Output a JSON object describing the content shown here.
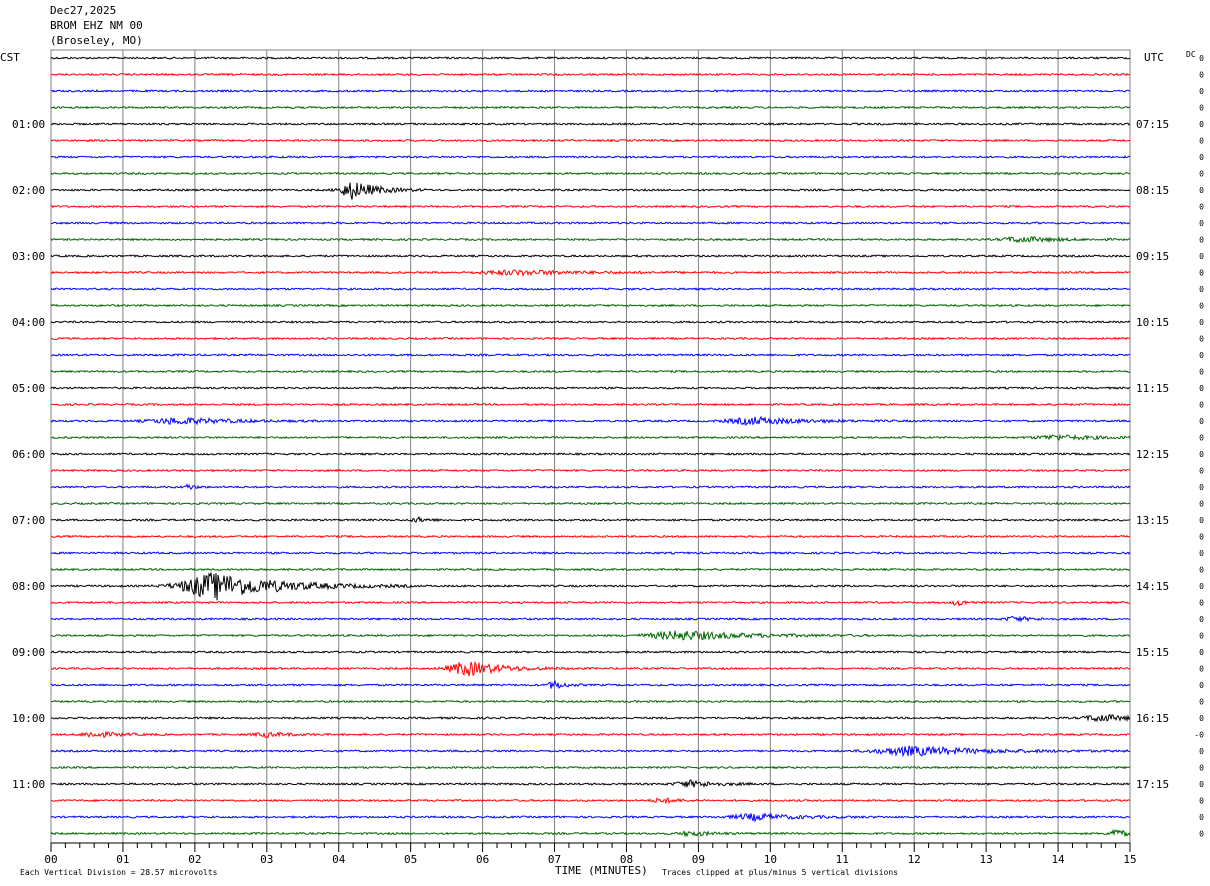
{
  "header": {
    "date": "Dec27,2025",
    "station": "BROM EHZ NM 00",
    "location": "(Broseley, MO)"
  },
  "colors": {
    "trace_cycle": [
      "#000000",
      "#ff0000",
      "#0000ff",
      "#006400"
    ],
    "grid": "#808080",
    "axis": "#000000"
  },
  "chart_data": {
    "type": "line",
    "left_timezone": "CST",
    "right_timezone": "UTC",
    "dc_label": "DC",
    "xlabel": "TIME (MINUTES)",
    "xlim": [
      0,
      15
    ],
    "x_tick_labels": [
      "00",
      "01",
      "02",
      "03",
      "04",
      "05",
      "06",
      "07",
      "08",
      "09",
      "10",
      "11",
      "12",
      "13",
      "14",
      "15"
    ],
    "row_interval_minutes": 15,
    "row_count": 48,
    "left_hour_labels": [
      "01:00",
      "02:00",
      "03:00",
      "04:00",
      "05:00",
      "06:00",
      "07:00",
      "08:00",
      "09:00",
      "10:00",
      "11:00"
    ],
    "right_hour_labels": [
      "07:15",
      "08:15",
      "09:15",
      "10:15",
      "11:15",
      "12:15",
      "13:15",
      "14:15",
      "15:15",
      "16:15",
      "17:15"
    ],
    "dc_offsets": [
      "0",
      "0",
      "0",
      "0",
      "0",
      "0",
      "0",
      "0",
      "0",
      "0",
      "0",
      "0",
      "0",
      "0",
      "0",
      "0",
      "0",
      "0",
      "0",
      "0",
      "0",
      "0",
      "0",
      "0",
      "0",
      "0",
      "0",
      "0",
      "0",
      "0",
      "0",
      "0",
      "0",
      "0",
      "0",
      "0",
      "0",
      "0",
      "0",
      "0",
      "0",
      "-0",
      "0",
      "0",
      "0",
      "0",
      "0",
      "0"
    ],
    "footer_left": "Each Vertical Division =   28.57 microvolts",
    "footer_right": "Traces clipped at plus/minus 5 vertical divisions",
    "events": [
      {
        "row": 8,
        "minute": 4.2,
        "amp": 1.0,
        "dur": 0.7
      },
      {
        "row": 11,
        "minute": 13.5,
        "amp": 0.3,
        "dur": 1.0
      },
      {
        "row": 13,
        "minute": 6.5,
        "amp": 0.25,
        "dur": 2.0
      },
      {
        "row": 22,
        "minute": 1.8,
        "amp": 0.35,
        "dur": 1.5
      },
      {
        "row": 22,
        "minute": 9.8,
        "amp": 0.4,
        "dur": 1.4
      },
      {
        "row": 23,
        "minute": 14.0,
        "amp": 0.25,
        "dur": 1.2
      },
      {
        "row": 26,
        "minute": 1.9,
        "amp": 0.3,
        "dur": 0.2
      },
      {
        "row": 28,
        "minute": 5.1,
        "amp": 0.25,
        "dur": 0.3
      },
      {
        "row": 32,
        "minute": 2.3,
        "amp": 1.5,
        "dur": 1.8
      },
      {
        "row": 33,
        "minute": 12.6,
        "amp": 0.35,
        "dur": 0.25
      },
      {
        "row": 34,
        "minute": 13.4,
        "amp": 0.25,
        "dur": 0.5
      },
      {
        "row": 35,
        "minute": 8.8,
        "amp": 0.5,
        "dur": 1.8
      },
      {
        "row": 37,
        "minute": 5.8,
        "amp": 0.8,
        "dur": 1.0
      },
      {
        "row": 38,
        "minute": 7.0,
        "amp": 0.5,
        "dur": 0.3
      },
      {
        "row": 40,
        "minute": 14.6,
        "amp": 0.4,
        "dur": 0.8
      },
      {
        "row": 41,
        "minute": 0.6,
        "amp": 0.35,
        "dur": 0.6
      },
      {
        "row": 41,
        "minute": 3.0,
        "amp": 0.25,
        "dur": 0.6
      },
      {
        "row": 42,
        "minute": 12.0,
        "amp": 0.5,
        "dur": 2.0
      },
      {
        "row": 44,
        "minute": 8.9,
        "amp": 0.35,
        "dur": 0.8
      },
      {
        "row": 45,
        "minute": 8.5,
        "amp": 0.25,
        "dur": 0.5
      },
      {
        "row": 46,
        "minute": 9.8,
        "amp": 0.35,
        "dur": 1.2
      },
      {
        "row": 47,
        "minute": 8.9,
        "amp": 0.25,
        "dur": 0.6
      },
      {
        "row": 47,
        "minute": 14.8,
        "amp": 0.45,
        "dur": 0.4
      }
    ]
  }
}
